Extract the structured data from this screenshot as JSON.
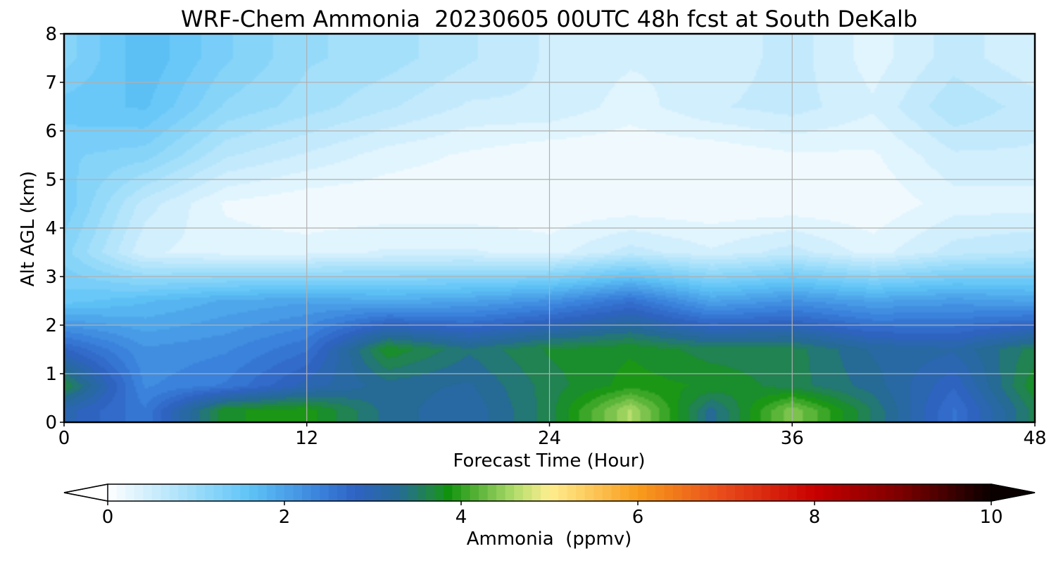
{
  "chart_data": {
    "type": "heatmap",
    "title": "WRF-Chem Ammonia  20230605 00UTC 48h fcst at South DeKalb",
    "xlabel": "Forecast Time (Hour)",
    "ylabel": "Alt AGL (km)",
    "xlim": [
      0,
      48
    ],
    "ylim": [
      0,
      8
    ],
    "x_ticks": [
      "0",
      "12",
      "24",
      "36",
      "48"
    ],
    "y_ticks": [
      "0",
      "1",
      "2",
      "3",
      "4",
      "5",
      "6",
      "7",
      "8"
    ],
    "grid": true,
    "hours": [
      0,
      4,
      8,
      12,
      16,
      20,
      24,
      28,
      32,
      36,
      40,
      44,
      48
    ],
    "altitudes_km": [
      0.25,
      0.75,
      1.5,
      2.5,
      3.5,
      4.5,
      5.5,
      6.5,
      7.5
    ],
    "ammonia_ppmv": [
      [
        3.0,
        2.5,
        3.8,
        3.9,
        3.3,
        3.1,
        3.6,
        4.6,
        3.3,
        4.4,
        3.5,
        2.6,
        3.6
      ],
      [
        3.7,
        2.3,
        2.5,
        3.0,
        3.3,
        3.2,
        3.6,
        3.9,
        3.8,
        3.6,
        3.3,
        2.8,
        3.8
      ],
      [
        2.8,
        2.2,
        2.3,
        2.6,
        3.8,
        3.4,
        3.7,
        3.8,
        3.6,
        3.6,
        3.2,
        3.1,
        3.6
      ],
      [
        1.5,
        1.7,
        1.9,
        2.0,
        1.9,
        2.0,
        2.2,
        2.6,
        2.0,
        2.2,
        2.0,
        2.1,
        2.0
      ],
      [
        1.2,
        0.4,
        0.3,
        0.3,
        0.4,
        0.4,
        0.3,
        0.6,
        0.4,
        0.6,
        0.3,
        0.6,
        0.7
      ],
      [
        1.4,
        0.6,
        0.2,
        0.1,
        0.1,
        0.1,
        0.1,
        0.1,
        0.1,
        0.1,
        0.1,
        0.3,
        0.3
      ],
      [
        1.3,
        1.2,
        0.7,
        0.5,
        0.3,
        0.2,
        0.1,
        0.1,
        0.1,
        0.2,
        0.2,
        0.5,
        0.5
      ],
      [
        1.5,
        1.6,
        1.1,
        0.9,
        0.7,
        0.5,
        0.5,
        0.3,
        0.5,
        0.6,
        0.4,
        0.8,
        0.6
      ],
      [
        1.2,
        1.7,
        1.3,
        1.0,
        0.9,
        0.7,
        0.5,
        0.4,
        0.4,
        0.6,
        0.3,
        0.6,
        0.4
      ]
    ],
    "colorbar": {
      "label": "Ammonia  (ppmv)",
      "range": [
        0,
        10
      ],
      "ticks": [
        "0",
        "2",
        "4",
        "6",
        "8",
        "10"
      ],
      "extend": "both",
      "stops": [
        {
          "v": 0.0,
          "color": "#ffffff"
        },
        {
          "v": 1.0,
          "color": "#9bdcfa"
        },
        {
          "v": 1.6,
          "color": "#5fc4f7"
        },
        {
          "v": 2.4,
          "color": "#3a82dc"
        },
        {
          "v": 2.8,
          "color": "#2f63c4"
        },
        {
          "v": 3.3,
          "color": "#256b95"
        },
        {
          "v": 3.7,
          "color": "#1f8a3c"
        },
        {
          "v": 3.85,
          "color": "#11920f"
        },
        {
          "v": 4.6,
          "color": "#b0dc6a"
        },
        {
          "v": 5.0,
          "color": "#ffee90"
        },
        {
          "v": 6.0,
          "color": "#f99d1c"
        },
        {
          "v": 7.0,
          "color": "#e8481a"
        },
        {
          "v": 8.0,
          "color": "#c80000"
        },
        {
          "v": 9.0,
          "color": "#7a0000"
        },
        {
          "v": 10.0,
          "color": "#0a0000"
        }
      ]
    }
  }
}
